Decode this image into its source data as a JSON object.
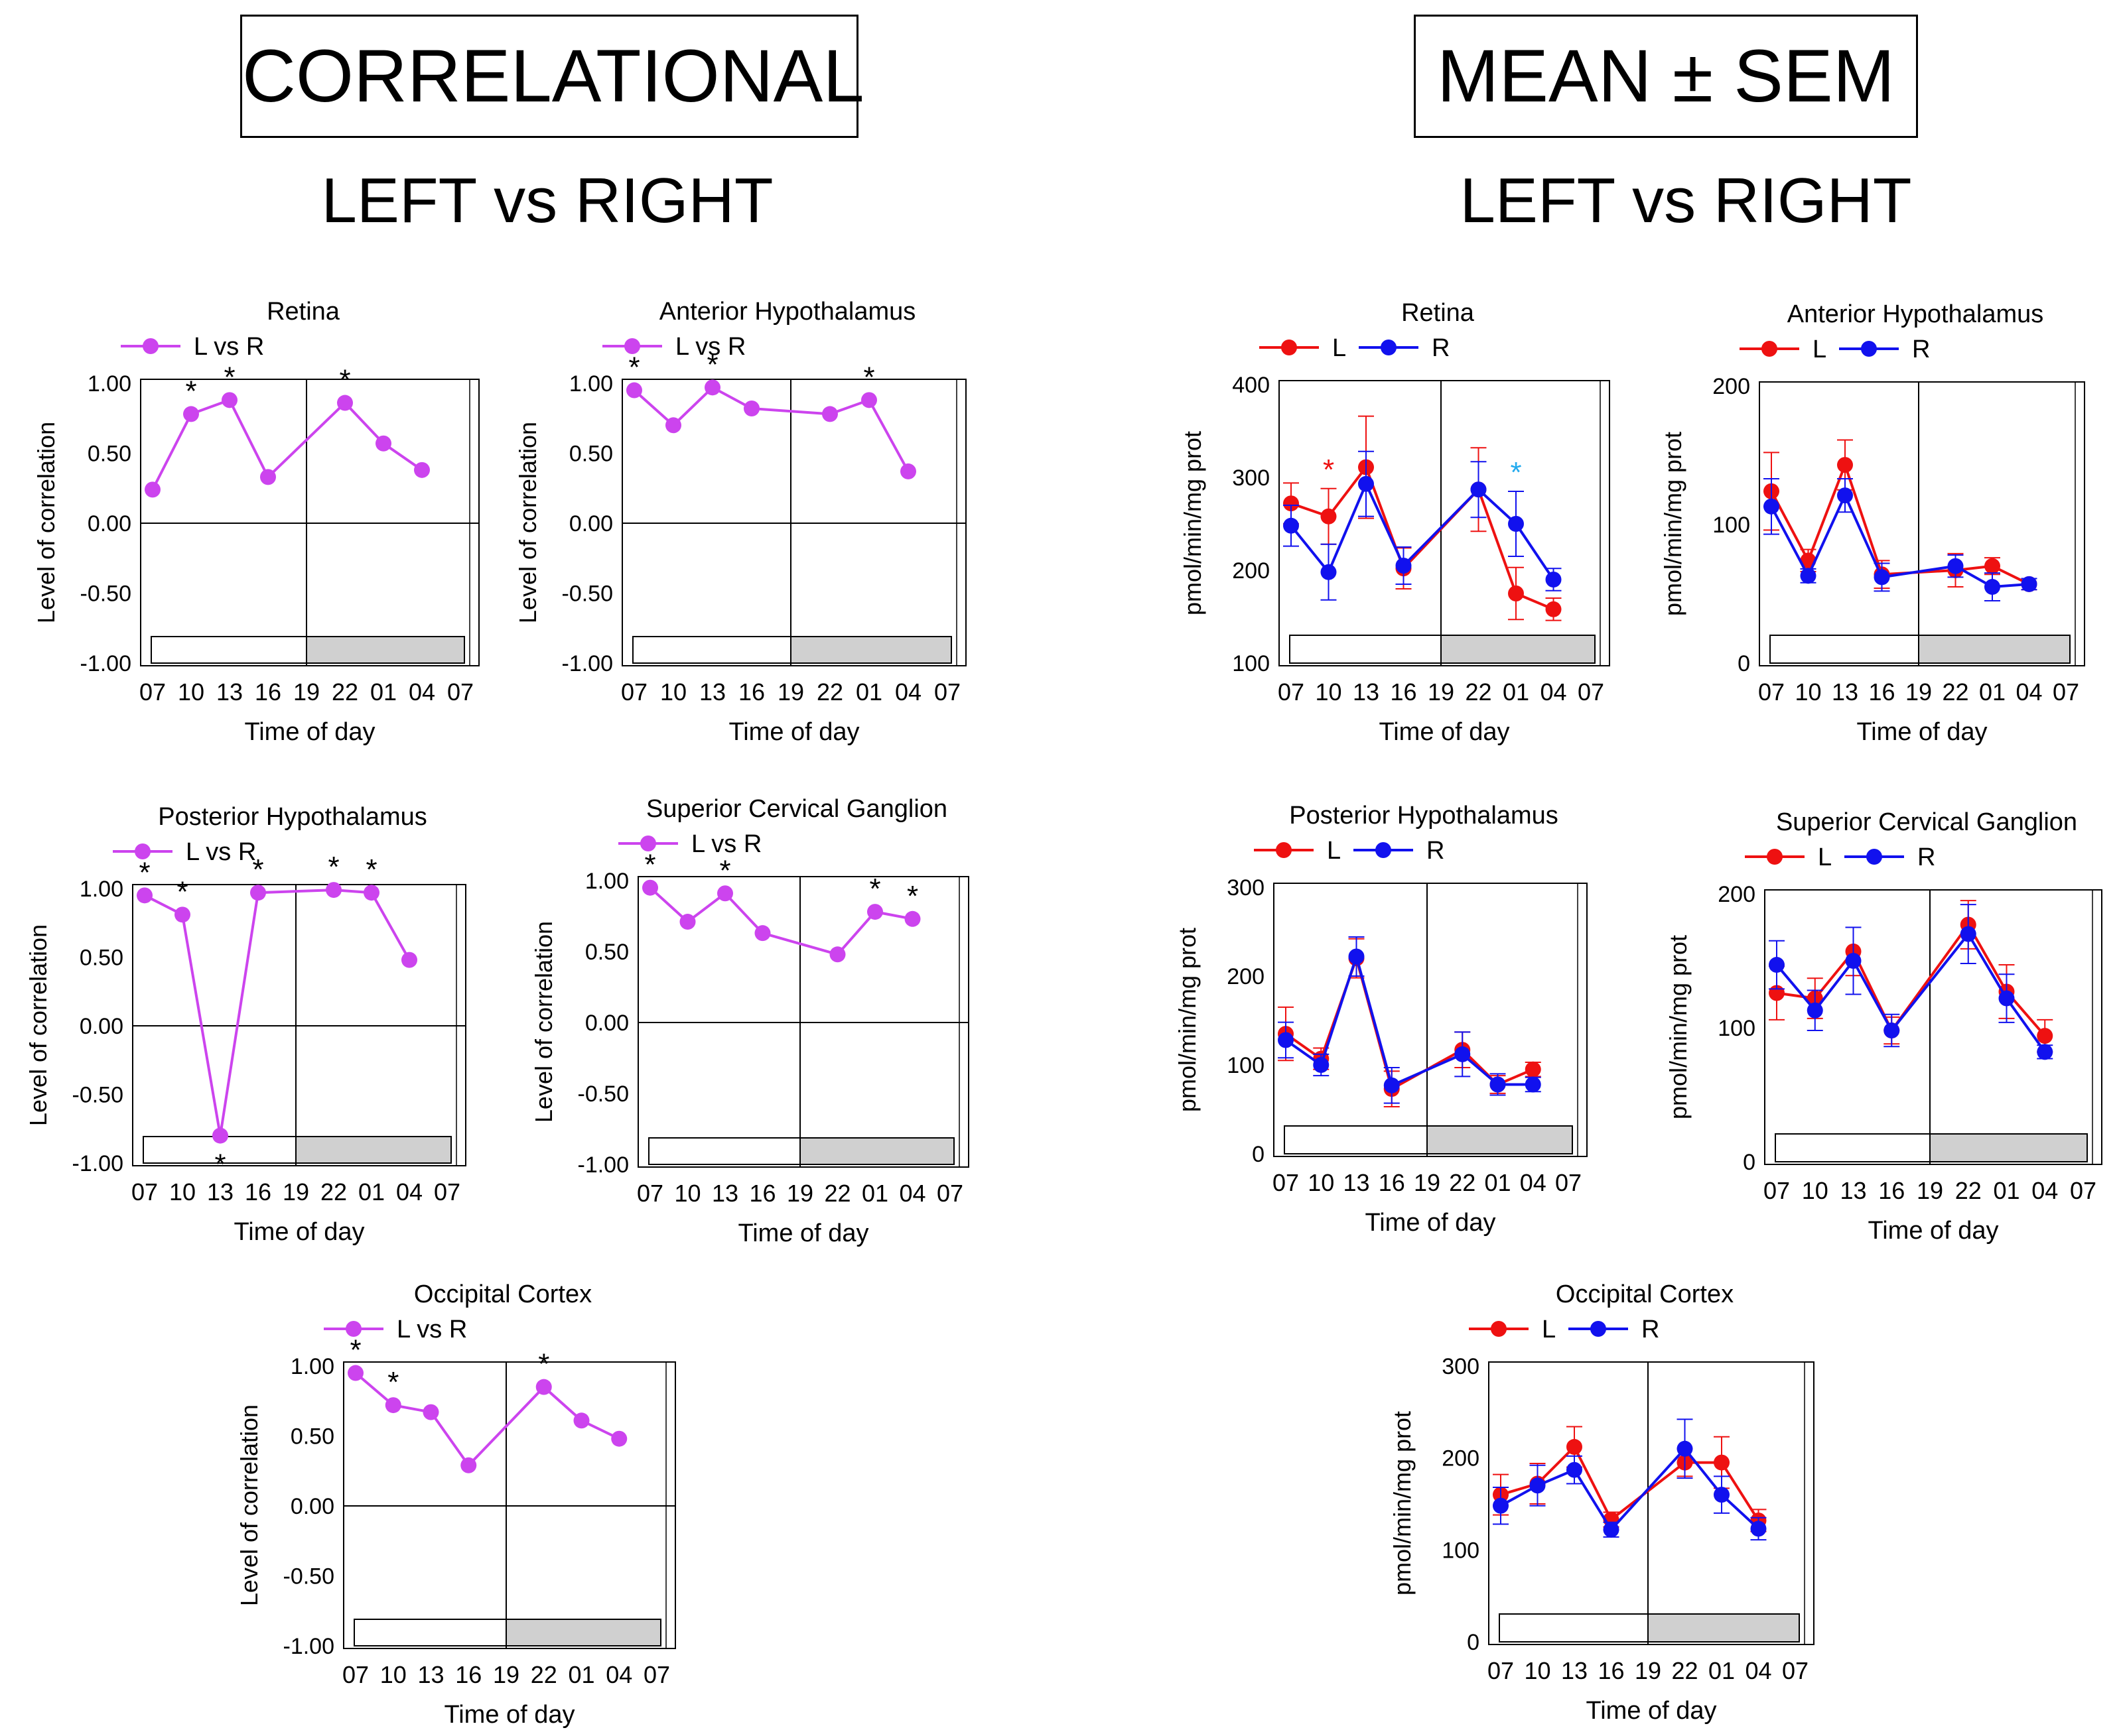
{
  "headers": {
    "left_box": "CORRELATIONAL",
    "right_box": "MEAN ± SEM",
    "left_sub": "LEFT vs RIGHT",
    "right_sub": "LEFT vs RIGHT"
  },
  "colors": {
    "corr": "#cc44ee",
    "left": "#ee1111",
    "right": "#1111ee",
    "dark_bar": "#d0d0d0",
    "sig_cyan": "#22aaee"
  },
  "chart_data": [
    {
      "id": "corr-retina",
      "type": "line",
      "title": "Retina",
      "xlabel": "Time of day",
      "ylabel": "Level of correlation",
      "categories": [
        "07",
        "10",
        "13",
        "16",
        "19",
        "22",
        "01",
        "04",
        "07"
      ],
      "ylim": [
        -1,
        1
      ],
      "yticks": [
        1,
        0.5,
        0,
        -0.5,
        -1
      ],
      "ytick_labels": [
        "1.00",
        "0.50",
        "0.00",
        "-0.50",
        "-1.00"
      ],
      "series": [
        {
          "name": "L vs R",
          "color": "corr",
          "values": [
            0.24,
            0.78,
            0.88,
            0.33,
            null,
            0.86,
            0.57,
            0.38,
            null
          ],
          "sig": [
            1,
            2,
            5
          ]
        }
      ]
    },
    {
      "id": "corr-ant-hyp",
      "type": "line",
      "title": "Anterior  Hypothalamus",
      "xlabel": "Time of day",
      "ylabel": "Level  of  correlation",
      "categories": [
        "07",
        "10",
        "13",
        "16",
        "19",
        "22",
        "01",
        "04",
        "07"
      ],
      "ylim": [
        -1,
        1
      ],
      "yticks": [
        1,
        0.5,
        0,
        -0.5,
        -1
      ],
      "ytick_labels": [
        "1.00",
        "0.50",
        "0.00",
        "-0.50",
        "-1.00"
      ],
      "series": [
        {
          "name": "L vs R",
          "color": "corr",
          "values": [
            0.95,
            0.7,
            0.97,
            0.82,
            null,
            0.78,
            0.88,
            0.37,
            null
          ],
          "sig": [
            0,
            2,
            6
          ]
        }
      ]
    },
    {
      "id": "corr-post-hyp",
      "type": "line",
      "title": "Posterior  Hypothalamus",
      "xlabel": "Time of day",
      "ylabel": "Level of correlation",
      "categories": [
        "07",
        "10",
        "13",
        "16",
        "19",
        "22",
        "01",
        "04",
        "07"
      ],
      "ylim": [
        -1,
        1
      ],
      "yticks": [
        1,
        0.5,
        0,
        -0.5,
        -1
      ],
      "ytick_labels": [
        "1.00",
        "0.50",
        "0.00",
        "-0.50",
        "-1.00"
      ],
      "series": [
        {
          "name": "L vs R",
          "color": "corr",
          "values": [
            0.95,
            0.81,
            -0.8,
            0.97,
            null,
            0.99,
            0.97,
            0.48,
            null
          ],
          "sig": [
            0,
            1,
            2,
            3,
            5,
            6
          ],
          "sig_below": [
            2
          ]
        }
      ]
    },
    {
      "id": "corr-scg",
      "type": "line",
      "title": "Superior  Cervical  Ganglion",
      "xlabel": "Time of day",
      "ylabel": "Level of correlation",
      "categories": [
        "07",
        "10",
        "13",
        "16",
        "19",
        "22",
        "01",
        "04",
        "07"
      ],
      "ylim": [
        -1,
        1
      ],
      "yticks": [
        1,
        0.5,
        0,
        -0.5,
        -1
      ],
      "ytick_labels": [
        "1.00",
        "0.50",
        "0.00",
        "-0.50",
        "-1.00"
      ],
      "series": [
        {
          "name": "L vs R",
          "color": "corr",
          "values": [
            0.95,
            0.71,
            0.91,
            0.63,
            null,
            0.48,
            0.78,
            0.73,
            null
          ],
          "sig": [
            0,
            2,
            6,
            7
          ]
        }
      ]
    },
    {
      "id": "corr-occ",
      "type": "line",
      "title": "Occipital Cortex",
      "xlabel": "Time of day",
      "ylabel": "Level of correlation",
      "categories": [
        "07",
        "10",
        "13",
        "16",
        "19",
        "22",
        "01",
        "04",
        "07"
      ],
      "ylim": [
        -1,
        1
      ],
      "yticks": [
        1,
        0.5,
        0,
        -0.5,
        -1
      ],
      "ytick_labels": [
        "1.00",
        "0.50",
        "0.00",
        "-0.50",
        "-1.00"
      ],
      "series": [
        {
          "name": "L vs R",
          "color": "corr",
          "values": [
            0.95,
            0.72,
            0.67,
            0.29,
            null,
            0.85,
            0.61,
            0.48,
            null
          ],
          "sig": [
            0,
            1,
            5
          ]
        }
      ]
    },
    {
      "id": "mean-retina",
      "type": "line",
      "title": "Retina",
      "xlabel": "Time of day",
      "ylabel": "pmol/min/mg prot",
      "categories": [
        "07",
        "10",
        "13",
        "16",
        "19",
        "22",
        "01",
        "04",
        "07"
      ],
      "ylim": [
        100,
        400
      ],
      "yticks": [
        400,
        300,
        200,
        100
      ],
      "ytick_labels": [
        "400",
        "300",
        "200",
        "100"
      ],
      "series": [
        {
          "name": "L",
          "color": "left",
          "values": [
            272,
            258,
            311,
            202,
            null,
            287,
            175,
            158,
            null
          ],
          "err": [
            22,
            30,
            55,
            22,
            null,
            45,
            28,
            12,
            null
          ],
          "sig": [
            1
          ]
        },
        {
          "name": "R",
          "color": "right",
          "values": [
            248,
            198,
            293,
            205,
            null,
            287,
            250,
            190,
            null
          ],
          "err": [
            22,
            30,
            35,
            20,
            null,
            30,
            35,
            12,
            null
          ],
          "sig": [
            6
          ]
        }
      ]
    },
    {
      "id": "mean-ant-hyp",
      "type": "line",
      "title": "Anterior  Hypothalamus",
      "xlabel": "Time of day",
      "ylabel": "pmol/min/mg  prot",
      "categories": [
        "07",
        "10",
        "13",
        "16",
        "19",
        "22",
        "01",
        "04",
        "07"
      ],
      "ylim": [
        0,
        200
      ],
      "yticks": [
        200,
        100,
        0
      ],
      "ytick_labels": [
        "200",
        "100",
        "0"
      ],
      "series": [
        {
          "name": "L",
          "color": "left",
          "values": [
            124,
            74,
            143,
            64,
            null,
            67,
            70,
            57,
            null
          ],
          "err": [
            28,
            8,
            18,
            10,
            null,
            12,
            6,
            4,
            null
          ]
        },
        {
          "name": "R",
          "color": "right",
          "values": [
            113,
            63,
            121,
            62,
            null,
            70,
            55,
            57,
            null
          ],
          "err": [
            20,
            5,
            12,
            10,
            null,
            8,
            10,
            4,
            null
          ]
        }
      ]
    },
    {
      "id": "mean-post-hyp",
      "type": "line",
      "title": "Posterior  Hypothalamus",
      "xlabel": "Time of day",
      "ylabel": "pmol/min/mg prot",
      "categories": [
        "07",
        "10",
        "13",
        "16",
        "19",
        "22",
        "01",
        "04",
        "07"
      ],
      "ylim": [
        0,
        300
      ],
      "yticks": [
        300,
        200,
        100,
        0
      ],
      "ytick_labels": [
        "300",
        "200",
        "100",
        "0"
      ],
      "series": [
        {
          "name": "L",
          "color": "left",
          "values": [
            135,
            107,
            220,
            73,
            null,
            117,
            78,
            95,
            null
          ],
          "err": [
            30,
            12,
            22,
            20,
            null,
            20,
            10,
            8,
            null
          ]
        },
        {
          "name": "R",
          "color": "right",
          "values": [
            128,
            100,
            222,
            77,
            null,
            112,
            78,
            78,
            null
          ],
          "err": [
            20,
            12,
            22,
            20,
            null,
            25,
            12,
            8,
            null
          ]
        }
      ]
    },
    {
      "id": "mean-scg",
      "type": "line",
      "title": "Superior  Cervical  Ganglion",
      "xlabel": "Time of day",
      "ylabel": "pmol/min/mg prot",
      "categories": [
        "07",
        "10",
        "13",
        "16",
        "19",
        "22",
        "01",
        "04",
        "07"
      ],
      "ylim": [
        0,
        200
      ],
      "yticks": [
        200,
        100,
        0
      ],
      "ytick_labels": [
        "200",
        "100",
        "0"
      ],
      "series": [
        {
          "name": "L",
          "color": "left",
          "values": [
            126,
            122,
            157,
            98,
            null,
            177,
            127,
            94,
            null
          ],
          "err": [
            20,
            15,
            18,
            10,
            null,
            18,
            20,
            12,
            null
          ]
        },
        {
          "name": "R",
          "color": "right",
          "values": [
            147,
            113,
            150,
            98,
            null,
            170,
            122,
            82,
            null
          ],
          "err": [
            18,
            15,
            25,
            12,
            null,
            22,
            18,
            5,
            null
          ]
        }
      ]
    },
    {
      "id": "mean-occ",
      "type": "line",
      "title": "Occipital Cortex",
      "xlabel": "Time of day",
      "ylabel": "pmol/min/mg prot",
      "categories": [
        "07",
        "10",
        "13",
        "16",
        "19",
        "22",
        "01",
        "04",
        "07"
      ],
      "ylim": [
        0,
        300
      ],
      "yticks": [
        300,
        200,
        100,
        0
      ],
      "ytick_labels": [
        "300",
        "200",
        "100",
        "0"
      ],
      "series": [
        {
          "name": "L",
          "color": "left",
          "values": [
            160,
            172,
            212,
            133,
            null,
            195,
            195,
            132,
            null
          ],
          "err": [
            22,
            22,
            22,
            8,
            null,
            15,
            28,
            12,
            null
          ]
        },
        {
          "name": "R",
          "color": "right",
          "values": [
            148,
            170,
            187,
            122,
            null,
            210,
            160,
            123,
            null
          ],
          "err": [
            20,
            22,
            15,
            8,
            null,
            32,
            20,
            12,
            null
          ]
        }
      ]
    }
  ]
}
